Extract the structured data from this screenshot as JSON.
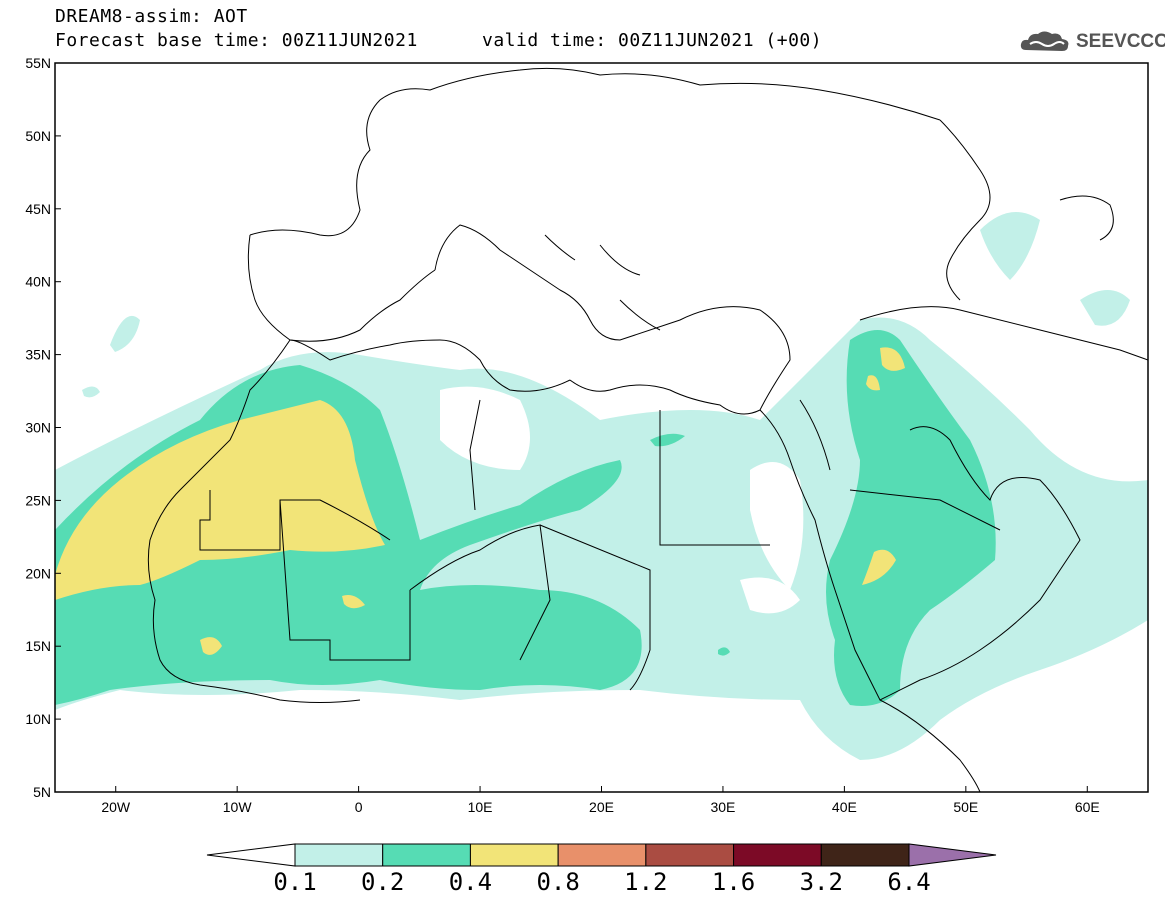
{
  "header": {
    "line1": "DREAM8-assim: AOT",
    "line2": "Forecast base time: 00Z11JUN2021",
    "line3": "valid time: 00Z11JUN2021 (+00)"
  },
  "logo": {
    "text": "SEEVCCC",
    "icon": "cloud-icon"
  },
  "map": {
    "lon_labels": [
      "20W",
      "10W",
      "0",
      "10E",
      "20E",
      "30E",
      "40E",
      "50E",
      "60E"
    ],
    "lat_labels": [
      "55N",
      "50N",
      "45N",
      "40N",
      "35N",
      "30N",
      "25N",
      "20N",
      "15N",
      "10N",
      "5N"
    ],
    "lon_range": [
      -25,
      65
    ],
    "lat_range": [
      5,
      55
    ]
  },
  "colorbar": {
    "colors": [
      "#ffffff",
      "#c2f0e8",
      "#56dcb4",
      "#f2e478",
      "#e8906a",
      "#aa4c42",
      "#7c0a26",
      "#3f2418",
      "#9b70aa"
    ],
    "labels": [
      "0.1",
      "0.2",
      "0.4",
      "0.8",
      "1.2",
      "1.6",
      "3.2",
      "6.4"
    ]
  }
}
